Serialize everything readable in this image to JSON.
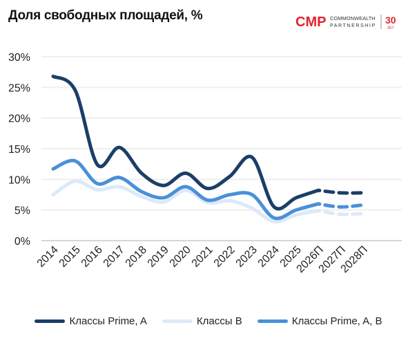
{
  "title": "Доля свободных площадей, %",
  "logo": {
    "mark": "CMP",
    "line1": "COMMONWEALTH",
    "line2": "PARTNERSHIP",
    "years": "30",
    "years_label": "ЛЕТ",
    "color": "#e4222e"
  },
  "chart_data": {
    "type": "line",
    "title": "Доля свободных площадей, %",
    "categories": [
      "2014",
      "2015",
      "2016",
      "2017",
      "2018",
      "2019",
      "2020",
      "2021",
      "2022",
      "2023",
      "2024",
      "2025",
      "2026П",
      "2027П",
      "2028П"
    ],
    "forecast_from": "2026П",
    "ylim": [
      0,
      30
    ],
    "yticks": [
      "0%",
      "5%",
      "10%",
      "15%",
      "20%",
      "25%",
      "30%"
    ],
    "grid": true,
    "legend": "bottom",
    "series": [
      {
        "name": "Классы Prime, A",
        "color": "#1b3f66",
        "values": [
          26.8,
          24.5,
          12.4,
          15.2,
          11,
          9,
          11,
          8.5,
          10.5,
          13.6,
          5.5,
          7,
          8.2,
          7.8,
          7.8
        ]
      },
      {
        "name": "Классы B",
        "color": "#dce9f8",
        "values": [
          7.5,
          9.7,
          8.3,
          8.8,
          7.2,
          6.3,
          8.2,
          6.2,
          6.5,
          5.3,
          3.1,
          4.2,
          4.9,
          4.3,
          4.4
        ]
      },
      {
        "name": "Классы Prime, A, B",
        "color": "#4a90d9",
        "values": [
          11.7,
          13,
          9.3,
          10.3,
          8,
          7,
          8.8,
          6.6,
          7.5,
          7.5,
          3.7,
          5,
          6,
          5.5,
          5.8
        ]
      }
    ]
  }
}
